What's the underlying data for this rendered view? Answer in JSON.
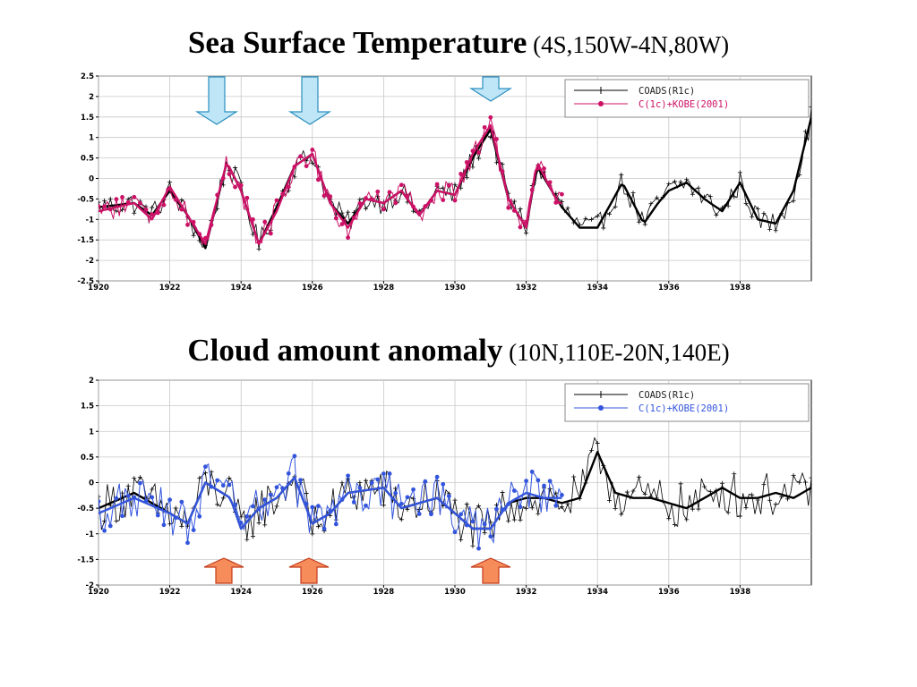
{
  "slide": {
    "title1_main": "Sea Surface Temperature",
    "title1_sub": " (4S,150W-4N,80W)",
    "title2_main": "Cloud amount anomaly",
    "title2_sub": " (10N,110E-20N,140E)"
  },
  "colors": {
    "sst_series": "#cc1166",
    "cloud_series": "#3355dd",
    "coads": "#000000",
    "down_arrow_fill": "#bfe6f7",
    "down_arrow_stroke": "#2a8fbf",
    "up_arrow_fill": "#f58c5a",
    "up_arrow_stroke": "#c43a1a"
  },
  "chart_data": [
    {
      "type": "line",
      "title": "Sea Surface Temperature (4S,150W-4N,80W)",
      "xlabel": "",
      "ylabel": "",
      "xlim": [
        1920,
        1940
      ],
      "ylim": [
        -2.5,
        2.5
      ],
      "x_ticks": [
        "1920",
        "1922",
        "1924",
        "1926",
        "1928",
        "1930",
        "1932",
        "1934",
        "1936",
        "1938"
      ],
      "y_ticks": [
        "2.5",
        "2",
        "1.5",
        "1",
        "0.5",
        "0",
        "-0.5",
        "-1",
        "-1.5",
        "-2",
        "-2.5"
      ],
      "grid": true,
      "legend_position": "top-right",
      "series": [
        {
          "name": "COADS(R1c)",
          "x_range": [
            1920,
            1940
          ],
          "smoothed": [
            [
              1920,
              -0.7
            ],
            [
              1921,
              -0.6
            ],
            [
              1921.5,
              -0.9
            ],
            [
              1922,
              -0.3
            ],
            [
              1922.5,
              -0.9
            ],
            [
              1923,
              -1.7
            ],
            [
              1923.6,
              0.4
            ],
            [
              1924,
              -0.3
            ],
            [
              1924.5,
              -1.6
            ],
            [
              1925,
              -0.7
            ],
            [
              1925.5,
              0.3
            ],
            [
              1926,
              0.6
            ],
            [
              1926.5,
              -0.6
            ],
            [
              1927,
              -1.1
            ],
            [
              1927.5,
              -0.5
            ],
            [
              1928,
              -0.6
            ],
            [
              1928.5,
              -0.3
            ],
            [
              1929,
              -0.9
            ],
            [
              1929.5,
              -0.3
            ],
            [
              1930,
              -0.4
            ],
            [
              1930.5,
              0.5
            ],
            [
              1931,
              1.2
            ],
            [
              1931.5,
              -0.5
            ],
            [
              1932,
              -1.2
            ],
            [
              1932.3,
              0.3
            ],
            [
              1933,
              -0.7
            ],
            [
              1933.5,
              -1.2
            ],
            [
              1934,
              -1.2
            ],
            [
              1934.7,
              -0.1
            ],
            [
              1935.3,
              -1.1
            ],
            [
              1935.7,
              -0.6
            ],
            [
              1936,
              -0.3
            ],
            [
              1936.5,
              -0.1
            ],
            [
              1937,
              -0.5
            ],
            [
              1937.5,
              -0.8
            ],
            [
              1938,
              -0.1
            ],
            [
              1938.5,
              -1.0
            ],
            [
              1939,
              -1.1
            ],
            [
              1939.5,
              -0.3
            ],
            [
              1940,
              1.5
            ]
          ]
        },
        {
          "name": "C(1c)+KOBE(2001)",
          "x_range": [
            1920,
            1933
          ],
          "smoothed": [
            [
              1920,
              -0.8
            ],
            [
              1921,
              -0.6
            ],
            [
              1921.5,
              -1.0
            ],
            [
              1922,
              -0.2
            ],
            [
              1922.5,
              -0.9
            ],
            [
              1923,
              -1.6
            ],
            [
              1923.6,
              0.4
            ],
            [
              1924,
              -0.3
            ],
            [
              1924.5,
              -1.6
            ],
            [
              1925,
              -0.8
            ],
            [
              1925.5,
              0.3
            ],
            [
              1926,
              0.6
            ],
            [
              1926.5,
              -0.6
            ],
            [
              1927,
              -1.2
            ],
            [
              1927.5,
              -0.5
            ],
            [
              1928,
              -0.6
            ],
            [
              1928.5,
              -0.3
            ],
            [
              1929,
              -0.9
            ],
            [
              1929.5,
              -0.3
            ],
            [
              1930,
              -0.4
            ],
            [
              1930.5,
              0.6
            ],
            [
              1931,
              1.3
            ],
            [
              1931.5,
              -0.5
            ],
            [
              1932,
              -1.2
            ],
            [
              1932.3,
              0.4
            ],
            [
              1932.9,
              -0.6
            ]
          ]
        }
      ],
      "annotations": [
        "down-arrow near 1923.5",
        "down-arrow near 1926",
        "down-arrow near 1931"
      ]
    },
    {
      "type": "line",
      "title": "Cloud amount anomaly (10N,110E-20N,140E)",
      "xlabel": "",
      "ylabel": "",
      "xlim": [
        1920,
        1940
      ],
      "ylim": [
        -2,
        2
      ],
      "x_ticks": [
        "1920",
        "1922",
        "1924",
        "1926",
        "1928",
        "1930",
        "1932",
        "1934",
        "1936",
        "1938"
      ],
      "y_ticks": [
        "2",
        "1.5",
        "1",
        "0.5",
        "0",
        "-0.5",
        "-1",
        "-1.5",
        "-2"
      ],
      "grid": true,
      "legend_position": "top-right",
      "series": [
        {
          "name": "COADS(R1c)",
          "x_range": [
            1920,
            1940
          ],
          "smoothed": [
            [
              1920,
              -0.5
            ],
            [
              1921,
              -0.2
            ],
            [
              1922,
              -0.6
            ],
            [
              1922.5,
              -0.8
            ],
            [
              1923,
              0.0
            ],
            [
              1923.7,
              -0.3
            ],
            [
              1924,
              -0.9
            ],
            [
              1924.5,
              -0.5
            ],
            [
              1925,
              -0.3
            ],
            [
              1925.5,
              0.1
            ],
            [
              1926,
              -0.8
            ],
            [
              1926.5,
              -0.6
            ],
            [
              1927,
              -0.2
            ],
            [
              1928,
              -0.1
            ],
            [
              1928.5,
              -0.5
            ],
            [
              1929,
              -0.4
            ],
            [
              1929.5,
              -0.3
            ],
            [
              1930,
              -0.6
            ],
            [
              1930.5,
              -0.9
            ],
            [
              1931,
              -0.9
            ],
            [
              1931.5,
              -0.4
            ],
            [
              1932,
              -0.3
            ],
            [
              1932.5,
              -0.3
            ],
            [
              1933,
              -0.4
            ],
            [
              1933.5,
              -0.3
            ],
            [
              1934,
              0.6
            ],
            [
              1934.5,
              -0.2
            ],
            [
              1935,
              -0.3
            ],
            [
              1935.5,
              -0.3
            ],
            [
              1936,
              -0.4
            ],
            [
              1936.5,
              -0.5
            ],
            [
              1937,
              -0.3
            ],
            [
              1937.5,
              -0.1
            ],
            [
              1938,
              -0.3
            ],
            [
              1938.5,
              -0.3
            ],
            [
              1939,
              -0.2
            ],
            [
              1939.5,
              -0.3
            ],
            [
              1940,
              -0.1
            ]
          ]
        },
        {
          "name": "C(1c)+KOBE(2001)",
          "x_range": [
            1920,
            1933
          ],
          "smoothed": [
            [
              1920,
              -0.6
            ],
            [
              1921,
              -0.3
            ],
            [
              1922,
              -0.6
            ],
            [
              1922.5,
              -0.8
            ],
            [
              1923,
              0.0
            ],
            [
              1923.7,
              -0.3
            ],
            [
              1924,
              -0.9
            ],
            [
              1924.5,
              -0.5
            ],
            [
              1925,
              -0.3
            ],
            [
              1925.5,
              0.1
            ],
            [
              1926,
              -0.8
            ],
            [
              1926.5,
              -0.6
            ],
            [
              1927,
              -0.2
            ],
            [
              1928,
              -0.1
            ],
            [
              1928.5,
              -0.5
            ],
            [
              1929,
              -0.4
            ],
            [
              1929.5,
              -0.3
            ],
            [
              1930,
              -0.6
            ],
            [
              1930.5,
              -0.9
            ],
            [
              1931,
              -0.9
            ],
            [
              1931.5,
              -0.4
            ],
            [
              1932,
              -0.2
            ],
            [
              1932.5,
              -0.3
            ],
            [
              1933,
              -0.3
            ]
          ]
        }
      ],
      "annotations": [
        "up-arrow near 1923.5",
        "up-arrow near 1926",
        "up-arrow near 1931"
      ]
    }
  ]
}
